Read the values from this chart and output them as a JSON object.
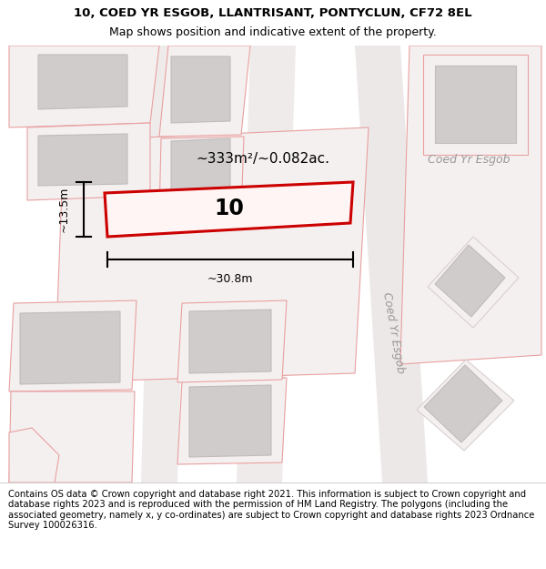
{
  "title_line1": "10, COED YR ESGOB, LLANTRISANT, PONTYCLUN, CF72 8EL",
  "title_line2": "Map shows position and indicative extent of the property.",
  "footer_text": "Contains OS data © Crown copyright and database right 2021. This information is subject to Crown copyright and database rights 2023 and is reproduced with the permission of HM Land Registry. The polygons (including the associated geometry, namely x, y co-ordinates) are subject to Crown copyright and database rights 2023 Ordnance Survey 100026316.",
  "road_label1": "Coed Yr Esgob",
  "road_label2": "Coed Yr Esgob",
  "property_number": "10",
  "area_label": "~333m²/~0.082ac.",
  "width_label": "~30.8m",
  "height_label": "~13.5m",
  "title_fontsize": 9.5,
  "footer_fontsize": 7.2,
  "map_bg": "#faf8f8",
  "plot_outline_color": "#e8a0a0",
  "building_fill": "#d0cccc",
  "building_edge": "#c0bcbc"
}
